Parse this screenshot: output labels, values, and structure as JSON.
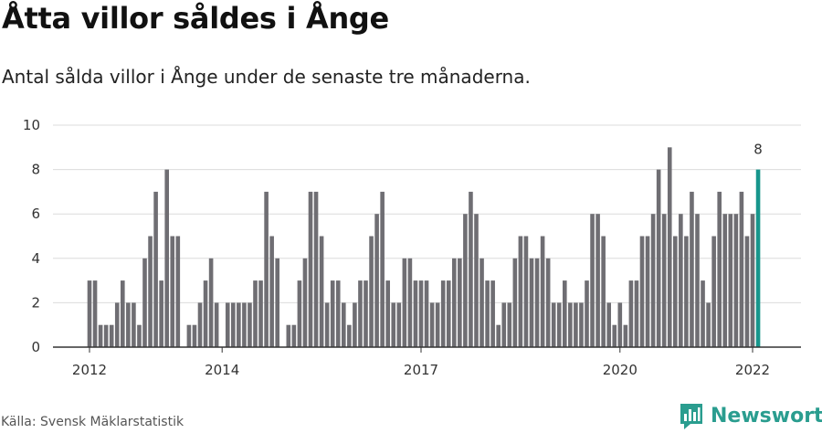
{
  "title": "Åtta villor såldes i Ånge",
  "subtitle": "Antal sålda villor i Ånge under de senaste tre månaderna.",
  "source": "Källa: Svensk Mäklarstatistik",
  "brand": {
    "name": "Newsworthy",
    "icon": "bar-chart-speech-bubble-icon"
  },
  "colors": {
    "bar": "#6f6e73",
    "highlight": "#17968c",
    "grid": "#dcdcdc",
    "brand": "#2a9d8f"
  },
  "chart_data": {
    "type": "bar",
    "ylim": [
      0,
      10
    ],
    "yticks": [
      0,
      2,
      4,
      6,
      8,
      10
    ],
    "xtick_labels": [
      {
        "label": "2012",
        "index": 0
      },
      {
        "label": "2014",
        "index": 24
      },
      {
        "label": "2017",
        "index": 60
      },
      {
        "label": "2020",
        "index": 96
      },
      {
        "label": "2022",
        "index": 120
      }
    ],
    "highlight_label": "8",
    "values": [
      3,
      3,
      1,
      1,
      1,
      2,
      3,
      2,
      2,
      1,
      4,
      5,
      7,
      3,
      8,
      5,
      5,
      0,
      1,
      1,
      2,
      3,
      4,
      2,
      0,
      2,
      2,
      2,
      2,
      2,
      3,
      3,
      7,
      5,
      4,
      0,
      1,
      1,
      3,
      4,
      7,
      7,
      5,
      2,
      3,
      3,
      2,
      1,
      2,
      3,
      3,
      5,
      6,
      7,
      3,
      2,
      2,
      4,
      4,
      3,
      3,
      3,
      2,
      2,
      3,
      3,
      4,
      4,
      6,
      7,
      6,
      4,
      3,
      3,
      1,
      2,
      2,
      4,
      5,
      5,
      4,
      4,
      5,
      4,
      2,
      2,
      3,
      2,
      2,
      2,
      3,
      6,
      6,
      5,
      2,
      1,
      2,
      1,
      3,
      3,
      5,
      5,
      6,
      8,
      6,
      9,
      5,
      6,
      5,
      7,
      6,
      3,
      2,
      5,
      7,
      6,
      6,
      6,
      7,
      5,
      6,
      8
    ]
  }
}
